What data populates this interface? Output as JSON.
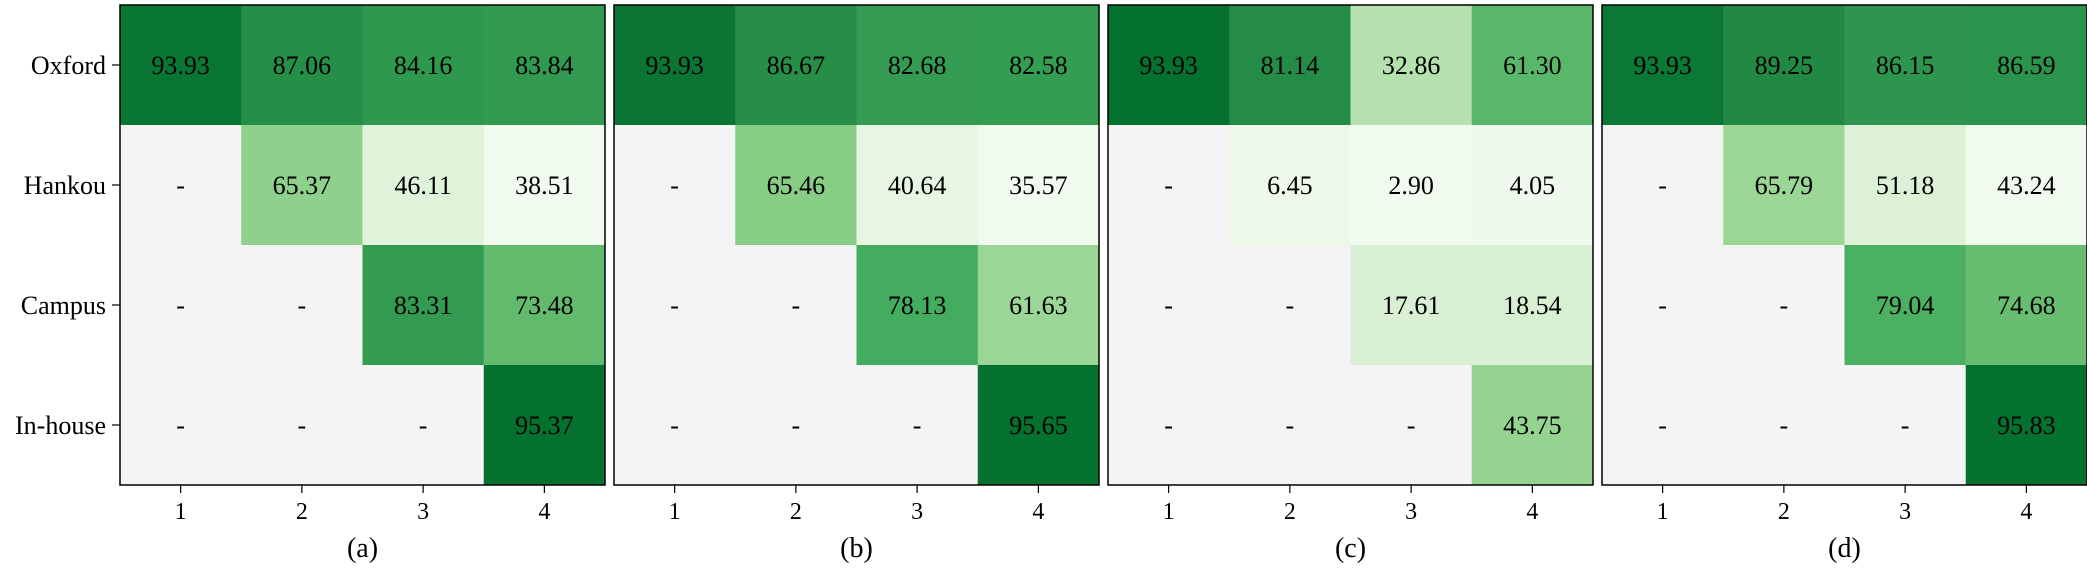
{
  "chart_data": [
    {
      "type": "heatmap",
      "panel_label": "(a)",
      "rows": [
        "Oxford",
        "Hankou",
        "Campus",
        "In-house"
      ],
      "columns": [
        "1",
        "2",
        "3",
        "4"
      ],
      "values": [
        [
          "93.93",
          "87.06",
          "84.16",
          "83.84"
        ],
        [
          "-",
          "65.37",
          "46.11",
          "38.51"
        ],
        [
          "-",
          "-",
          "83.31",
          "73.48"
        ],
        [
          "-",
          "-",
          "-",
          "95.37"
        ]
      ]
    },
    {
      "type": "heatmap",
      "panel_label": "(b)",
      "rows": [
        "Oxford",
        "Hankou",
        "Campus",
        "In-house"
      ],
      "columns": [
        "1",
        "2",
        "3",
        "4"
      ],
      "values": [
        [
          "93.93",
          "86.67",
          "82.68",
          "82.58"
        ],
        [
          "-",
          "65.46",
          "40.64",
          "35.57"
        ],
        [
          "-",
          "-",
          "78.13",
          "61.63"
        ],
        [
          "-",
          "-",
          "-",
          "95.65"
        ]
      ]
    },
    {
      "type": "heatmap",
      "panel_label": "(c)",
      "rows": [
        "Oxford",
        "Hankou",
        "Campus",
        "In-house"
      ],
      "columns": [
        "1",
        "2",
        "3",
        "4"
      ],
      "values": [
        [
          "93.93",
          "81.14",
          "32.86",
          "61.30"
        ],
        [
          "-",
          "6.45",
          "2.90",
          "4.05"
        ],
        [
          "-",
          "-",
          "17.61",
          "18.54"
        ],
        [
          "-",
          "-",
          "-",
          "43.75"
        ]
      ]
    },
    {
      "type": "heatmap",
      "panel_label": "(d)",
      "rows": [
        "Oxford",
        "Hankou",
        "Campus",
        "In-house"
      ],
      "columns": [
        "1",
        "2",
        "3",
        "4"
      ],
      "values": [
        [
          "93.93",
          "89.25",
          "86.15",
          "86.59"
        ],
        [
          "-",
          "65.79",
          "51.18",
          "43.24"
        ],
        [
          "-",
          "-",
          "79.04",
          "74.68"
        ],
        [
          "-",
          "-",
          "-",
          "95.83"
        ]
      ]
    }
  ],
  "colors": {
    "missing_cell": "#f4f4f4",
    "colormap": "Greens",
    "border": "#000000"
  }
}
